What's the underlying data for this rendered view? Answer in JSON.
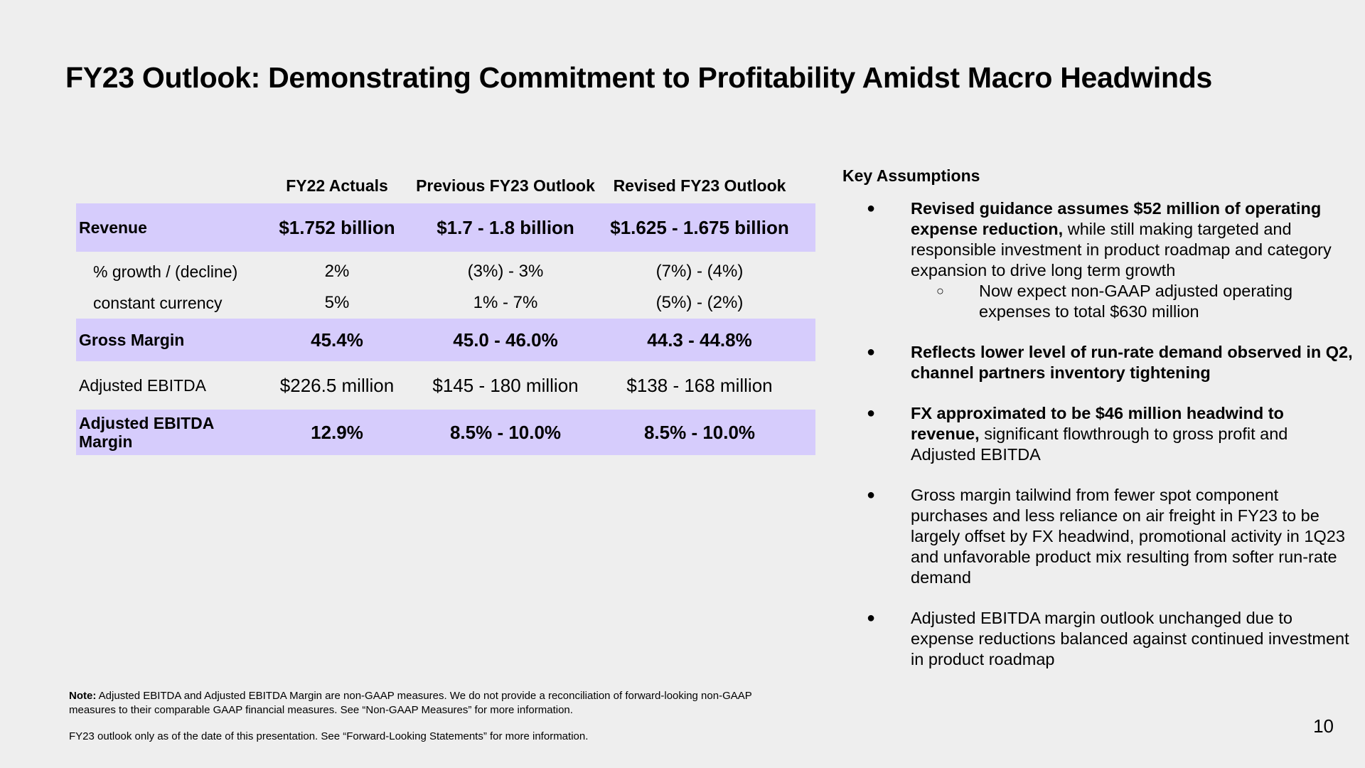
{
  "slide": {
    "title": "FY23 Outlook: Demonstrating Commitment to Profitability Amidst Macro Headwinds",
    "page_number": "10"
  },
  "table": {
    "headers": [
      "",
      "FY22 Actuals",
      "Previous FY23 Outlook",
      "Revised FY23 Outlook"
    ],
    "rows": [
      {
        "label": "Revenue",
        "values": [
          "$1.752 billion",
          "$1.7 - 1.8 billion",
          "$1.625 - 1.675 billion"
        ]
      },
      {
        "label": "% growth / (decline)",
        "values": [
          "2%",
          "(3%) - 3%",
          "(7%) - (4%)"
        ]
      },
      {
        "label": "constant currency",
        "values": [
          "5%",
          "1% - 7%",
          "(5%) - (2%)"
        ]
      },
      {
        "label": "Gross Margin",
        "values": [
          "45.4%",
          "45.0 - 46.0%",
          "44.3 - 44.8%"
        ]
      },
      {
        "label": "Adjusted EBITDA",
        "values": [
          "$226.5 million",
          "$145 - 180 million",
          "$138 - 168 million"
        ]
      },
      {
        "label": "Adjusted EBITDA Margin",
        "values": [
          "12.9%",
          "8.5% - 10.0%",
          "8.5% - 10.0%"
        ]
      }
    ],
    "shade_color": "#d6ccfc"
  },
  "assumptions": {
    "title": "Key Assumptions",
    "items": [
      {
        "bold": "Revised guidance assumes $52 million of operating expense reduction,",
        "text": " while still making targeted and responsible investment in product roadmap and category expansion to drive long term growth",
        "sub": "Now expect non-GAAP adjusted operating expenses to total $630 million"
      },
      {
        "bold": "Reflects lower level of run-rate demand observed in Q2, channel partners inventory tightening",
        "text": ""
      },
      {
        "bold": "FX approximated to be $46 million headwind to revenue,",
        "text": " significant flowthrough to gross profit and Adjusted EBITDA"
      },
      {
        "bold": "",
        "text": "Gross margin tailwind from fewer spot component purchases and less reliance on air freight in FY23 to be largely offset by FX headwind, promotional activity in 1Q23 and unfavorable product mix resulting from softer run-rate demand"
      },
      {
        "bold": "",
        "text": "Adjusted EBITDA margin outlook unchanged due to expense reductions balanced against continued investment in product roadmap"
      }
    ]
  },
  "footnotes": {
    "note_label": "Note:",
    "note_text": " Adjusted EBITDA and Adjusted EBITDA Margin are non-GAAP measures. We do not provide a reconciliation of forward-looking non-GAAP measures to their comparable GAAP financial measures. See “Non-GAAP Measures” for more information.",
    "outlook_text": "FY23 outlook only as of the date of this presentation. See “Forward-Looking Statements” for more information."
  }
}
